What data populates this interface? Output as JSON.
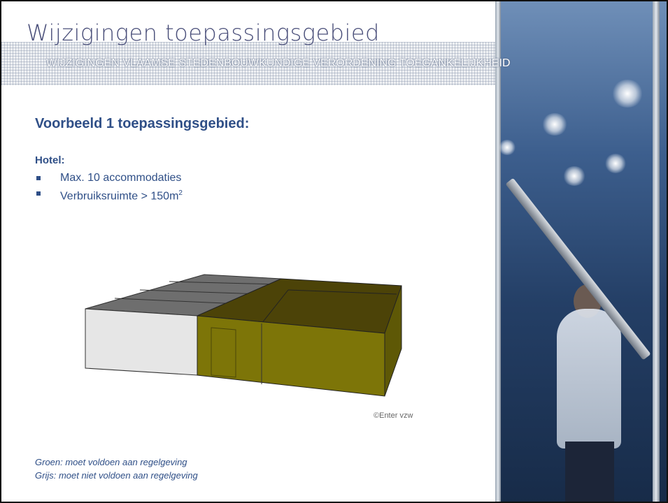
{
  "slide": {
    "title": "Wijzigingen toepassingsgebied",
    "subtitle": "WIJZIGINGEN VLAAMSE STEDENBOUWKUNDIGE VERORDENING TOEGANKELIJKHEID",
    "heading": "Voorbeeld 1 toepassingsgebied:",
    "section_label": "Hotel:",
    "bullets": [
      {
        "text": "Max. 10 accommodaties",
        "sup": ""
      },
      {
        "text": "Verbruiksruimte > 150m",
        "sup": "2"
      }
    ],
    "image_credit": "©Enter vzw",
    "legend": {
      "green": "Groen: moet voldoen aan regelgeving",
      "grey": "Grijs: moet niet voldoen aan regelgeving"
    }
  },
  "colors": {
    "title": "#4a4f7a",
    "text": "#2f4f87",
    "green_roof": "#4c4308",
    "green_wall": "#7d7508",
    "grey_roof": "#6e6e6e",
    "grey_wall": "#e6e6e6"
  }
}
